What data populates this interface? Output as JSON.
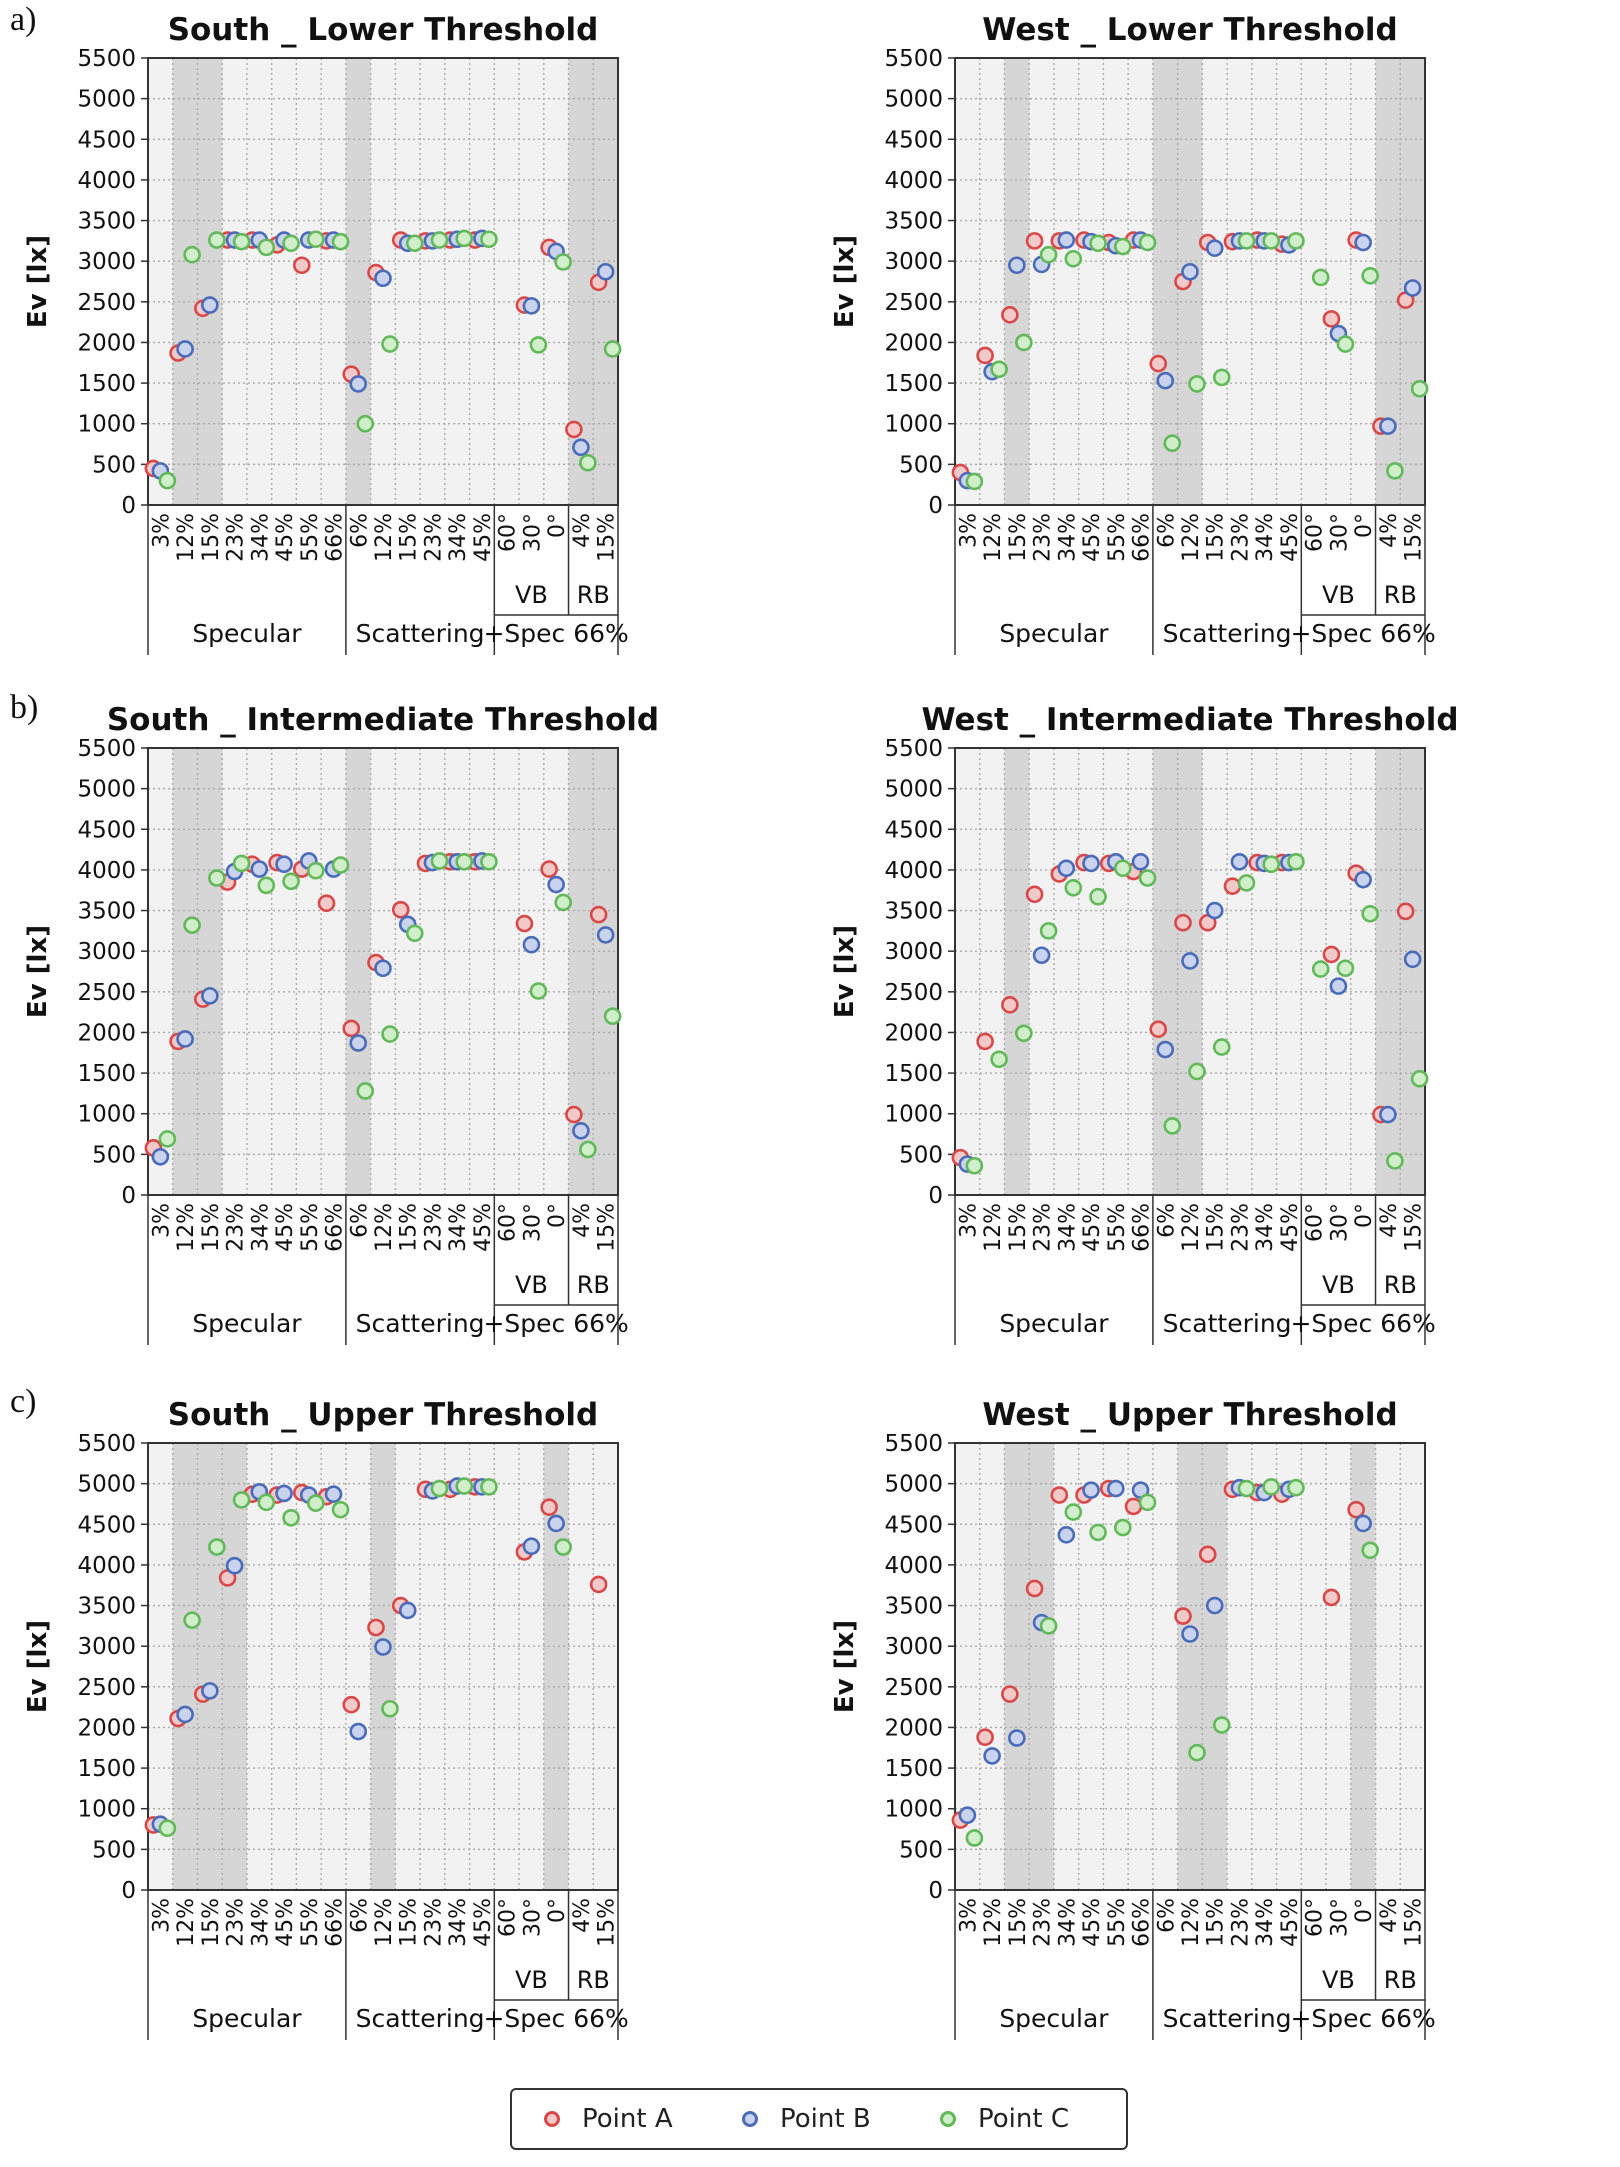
{
  "figure": {
    "panel_tags": [
      "a)",
      "b)",
      "c)"
    ],
    "y_ticks": [
      "0",
      "500",
      "1000",
      "1500",
      "2000",
      "2500",
      "3000",
      "3500",
      "4000",
      "4500",
      "5000",
      "5500"
    ],
    "categories": [
      "3%",
      "12%",
      "15%",
      "23%",
      "34%",
      "45%",
      "55%",
      "66%",
      "6%",
      "12%",
      "15%",
      "23%",
      "34%",
      "45%",
      "60°",
      "30°",
      "0°",
      "4%",
      "15%"
    ],
    "sublabels": {
      "vb": "VB",
      "rb": "RB"
    },
    "groups": {
      "specular": "Specular",
      "scattering": "Scattering",
      "vbrb": "+Spec 66%"
    }
  },
  "legend": {
    "items": [
      {
        "label": "Point A",
        "color": "#d94848"
      },
      {
        "label": "Point B",
        "color": "#4a6bb8"
      },
      {
        "label": "Point C",
        "color": "#62b85a"
      }
    ]
  },
  "colors": {
    "shade_dark": "#d6d6d6",
    "shade_light": "#f2f2f2",
    "grid": "#aaaaaa",
    "edge": "#333333"
  },
  "chart_data": [
    {
      "type": "scatter",
      "title": "South _ Lower Threshold",
      "ylabel": "Ev [lx]",
      "ylim": [
        0,
        5500
      ],
      "shaded_categories": [
        1,
        2,
        8,
        17,
        18
      ],
      "series": [
        {
          "name": "Point A",
          "values": [
            450,
            1870,
            2420,
            3260,
            3260,
            3200,
            2950,
            3250,
            1610,
            2860,
            3260,
            3250,
            3260,
            3260,
            null,
            2460,
            3170,
            930,
            2740
          ]
        },
        {
          "name": "Point B",
          "values": [
            420,
            1920,
            2460,
            3260,
            3260,
            3260,
            3260,
            3260,
            1490,
            2790,
            3220,
            3250,
            3270,
            3280,
            null,
            2450,
            3120,
            710,
            2870
          ]
        },
        {
          "name": "Point C",
          "values": [
            300,
            3080,
            3260,
            3240,
            3170,
            3220,
            3270,
            3240,
            1000,
            1980,
            3220,
            3260,
            3280,
            3270,
            null,
            1970,
            2990,
            520,
            1920
          ]
        }
      ]
    },
    {
      "type": "scatter",
      "title": "West _ Lower Threshold",
      "ylabel": "Ev [lx]",
      "ylim": [
        0,
        5500
      ],
      "shaded_categories": [
        2,
        8,
        9,
        17,
        18
      ],
      "series": [
        {
          "name": "Point A",
          "values": [
            400,
            1840,
            2340,
            3250,
            3250,
            3260,
            3230,
            3260,
            1740,
            2750,
            3230,
            3240,
            3260,
            3210,
            null,
            2290,
            3260,
            970,
            2520
          ]
        },
        {
          "name": "Point B",
          "values": [
            300,
            1640,
            2950,
            2960,
            3260,
            3240,
            3190,
            3260,
            1530,
            2870,
            3160,
            3250,
            3250,
            3200,
            null,
            2110,
            3230,
            970,
            2670
          ]
        },
        {
          "name": "Point C",
          "values": [
            290,
            1670,
            2000,
            3080,
            3030,
            3220,
            3180,
            3230,
            760,
            1490,
            1570,
            3250,
            3250,
            3250,
            2800,
            1980,
            2820,
            420,
            1430
          ]
        }
      ]
    },
    {
      "type": "scatter",
      "title": "South _ Intermediate Threshold",
      "ylabel": "Ev [lx]",
      "ylim": [
        0,
        5500
      ],
      "shaded_categories": [
        1,
        2,
        8,
        17,
        18
      ],
      "series": [
        {
          "name": "Point A",
          "values": [
            580,
            1890,
            2410,
            3850,
            4070,
            4090,
            4010,
            3590,
            2050,
            2860,
            3510,
            4080,
            4100,
            4100,
            null,
            3340,
            4010,
            990,
            3450
          ]
        },
        {
          "name": "Point B",
          "values": [
            470,
            1920,
            2450,
            3980,
            4010,
            4070,
            4110,
            4010,
            1870,
            2790,
            3330,
            4090,
            4100,
            4110,
            null,
            3080,
            3820,
            790,
            3200
          ]
        },
        {
          "name": "Point C",
          "values": [
            690,
            3320,
            3900,
            4080,
            3810,
            3860,
            3990,
            4060,
            1280,
            1980,
            3220,
            4110,
            4100,
            4100,
            null,
            2510,
            3600,
            560,
            2200
          ]
        }
      ]
    },
    {
      "type": "scatter",
      "title": "West _ Intermediate Threshold",
      "ylabel": "Ev [lx]",
      "ylim": [
        0,
        5500
      ],
      "shaded_categories": [
        2,
        8,
        9,
        17,
        18
      ],
      "series": [
        {
          "name": "Point A",
          "values": [
            460,
            1890,
            2340,
            3700,
            3950,
            4090,
            4080,
            3980,
            2040,
            3350,
            3350,
            3800,
            4090,
            4090,
            null,
            2960,
            3960,
            990,
            3490
          ]
        },
        {
          "name": "Point B",
          "values": [
            380,
            null,
            null,
            2950,
            4020,
            4080,
            4100,
            4100,
            1790,
            2880,
            3500,
            4100,
            4080,
            4090,
            null,
            2570,
            3880,
            990,
            2900
          ]
        },
        {
          "name": "Point C",
          "values": [
            360,
            1670,
            1990,
            3250,
            3780,
            3670,
            4020,
            3900,
            850,
            1520,
            1820,
            3840,
            4070,
            4100,
            2780,
            2790,
            3460,
            420,
            1430
          ]
        }
      ]
    },
    {
      "type": "scatter",
      "title": "South _ Upper Threshold",
      "ylabel": "Ev [lx]",
      "ylim": [
        0,
        5500
      ],
      "shaded_categories": [
        1,
        2,
        3,
        9,
        16
      ],
      "series": [
        {
          "name": "Point A",
          "values": [
            800,
            2110,
            2410,
            3840,
            4870,
            4860,
            4890,
            4840,
            2280,
            3230,
            3500,
            4930,
            4930,
            4960,
            null,
            4160,
            4710,
            null,
            3760
          ]
        },
        {
          "name": "Point B",
          "values": [
            810,
            2160,
            2450,
            3990,
            4900,
            4880,
            4860,
            4870,
            1950,
            2990,
            3440,
            4910,
            4970,
            4960,
            null,
            4230,
            4510,
            null,
            null
          ]
        },
        {
          "name": "Point C",
          "values": [
            760,
            3320,
            4220,
            4800,
            4770,
            4580,
            4760,
            4680,
            null,
            2230,
            null,
            4940,
            4970,
            4960,
            null,
            null,
            4220,
            null,
            null
          ]
        }
      ]
    },
    {
      "type": "scatter",
      "title": "West _ Upper Threshold",
      "ylabel": "Ev [lx]",
      "ylim": [
        0,
        5500
      ],
      "shaded_categories": [
        2,
        3,
        9,
        10,
        16
      ],
      "series": [
        {
          "name": "Point A",
          "values": [
            860,
            1880,
            2410,
            3710,
            4860,
            4860,
            4940,
            4720,
            null,
            3370,
            4130,
            4930,
            4890,
            4870,
            null,
            3600,
            4680,
            null,
            null
          ]
        },
        {
          "name": "Point B",
          "values": [
            920,
            1650,
            1870,
            3290,
            4370,
            4920,
            4940,
            4920,
            null,
            3150,
            3500,
            4950,
            4890,
            4930,
            null,
            null,
            4510,
            null,
            null
          ]
        },
        {
          "name": "Point C",
          "values": [
            640,
            null,
            null,
            3250,
            4650,
            4400,
            4460,
            4770,
            null,
            1690,
            2030,
            4940,
            4960,
            4950,
            null,
            null,
            4180,
            null,
            null
          ]
        }
      ]
    }
  ]
}
